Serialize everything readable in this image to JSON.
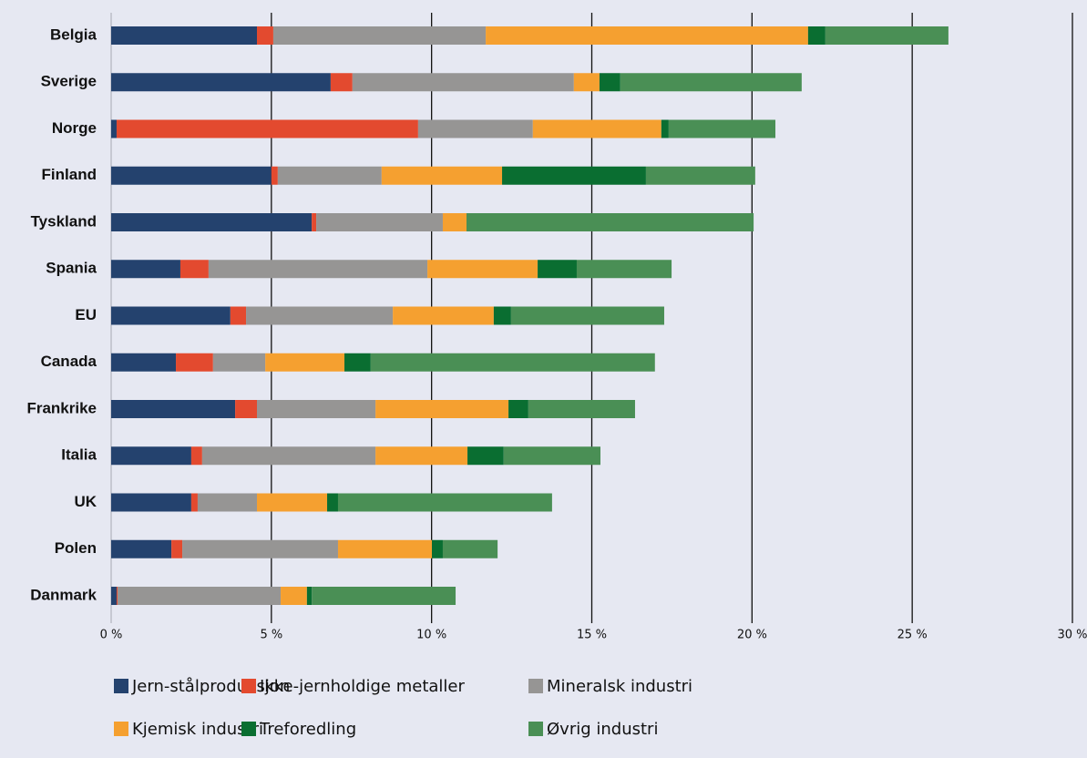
{
  "chart_data": {
    "type": "bar",
    "orientation": "horizontal",
    "stacked": true,
    "categories": [
      "Belgia",
      "Sverige",
      "Norge",
      "Finland",
      "Tyskland",
      "Spania",
      "EU",
      "Canada",
      "Frankrike",
      "Italia",
      "UK",
      "Polen",
      "Danmark"
    ],
    "series": [
      {
        "name": "Jern-stålproduksjon",
        "color": "#24426e",
        "values": [
          4.55,
          6.85,
          0.17,
          5.0,
          6.26,
          2.16,
          3.72,
          2.02,
          3.87,
          2.5,
          2.5,
          1.88,
          0.17
        ]
      },
      {
        "name": "Ikke-jernholdige metaller",
        "color": "#e34a2f",
        "values": [
          0.51,
          0.68,
          9.41,
          0.2,
          0.14,
          0.88,
          0.49,
          1.16,
          0.68,
          0.34,
          0.2,
          0.34,
          0.03
        ]
      },
      {
        "name": "Mineralsk industri",
        "color": "#969594",
        "values": [
          6.63,
          6.91,
          3.58,
          3.24,
          3.95,
          6.83,
          4.58,
          1.63,
          3.7,
          5.41,
          1.85,
          4.86,
          5.09
        ]
      },
      {
        "name": "Kjemisk industri",
        "color": "#f5a030",
        "values": [
          10.06,
          0.8,
          4.01,
          3.76,
          0.74,
          3.44,
          3.15,
          2.47,
          4.15,
          2.87,
          2.19,
          2.93,
          0.82
        ]
      },
      {
        "name": "Treforedling",
        "color": "#0a6e31",
        "values": [
          0.54,
          0.65,
          0.23,
          4.49,
          0,
          1.22,
          0.54,
          0.82,
          0.62,
          1.13,
          0.34,
          0.34,
          0.15
        ]
      },
      {
        "name": "Øvrig industri",
        "color": "#4a8f55",
        "values": [
          3.84,
          5.66,
          3.33,
          3.41,
          8.96,
          2.96,
          4.78,
          8.87,
          3.33,
          3.02,
          6.68,
          1.71,
          4.49
        ]
      }
    ],
    "xlim": [
      0,
      30
    ],
    "xticks": [
      {
        "value": 0,
        "label": "0 %"
      },
      {
        "value": 5,
        "label": "5 %"
      },
      {
        "value": 10,
        "label": "10 %"
      },
      {
        "value": 15,
        "label": "15 %"
      },
      {
        "value": 20,
        "label": "20 %"
      },
      {
        "value": 25,
        "label": "25 %"
      },
      {
        "value": 30,
        "label": "30 %"
      }
    ],
    "grid": true,
    "legend": "bottom"
  }
}
